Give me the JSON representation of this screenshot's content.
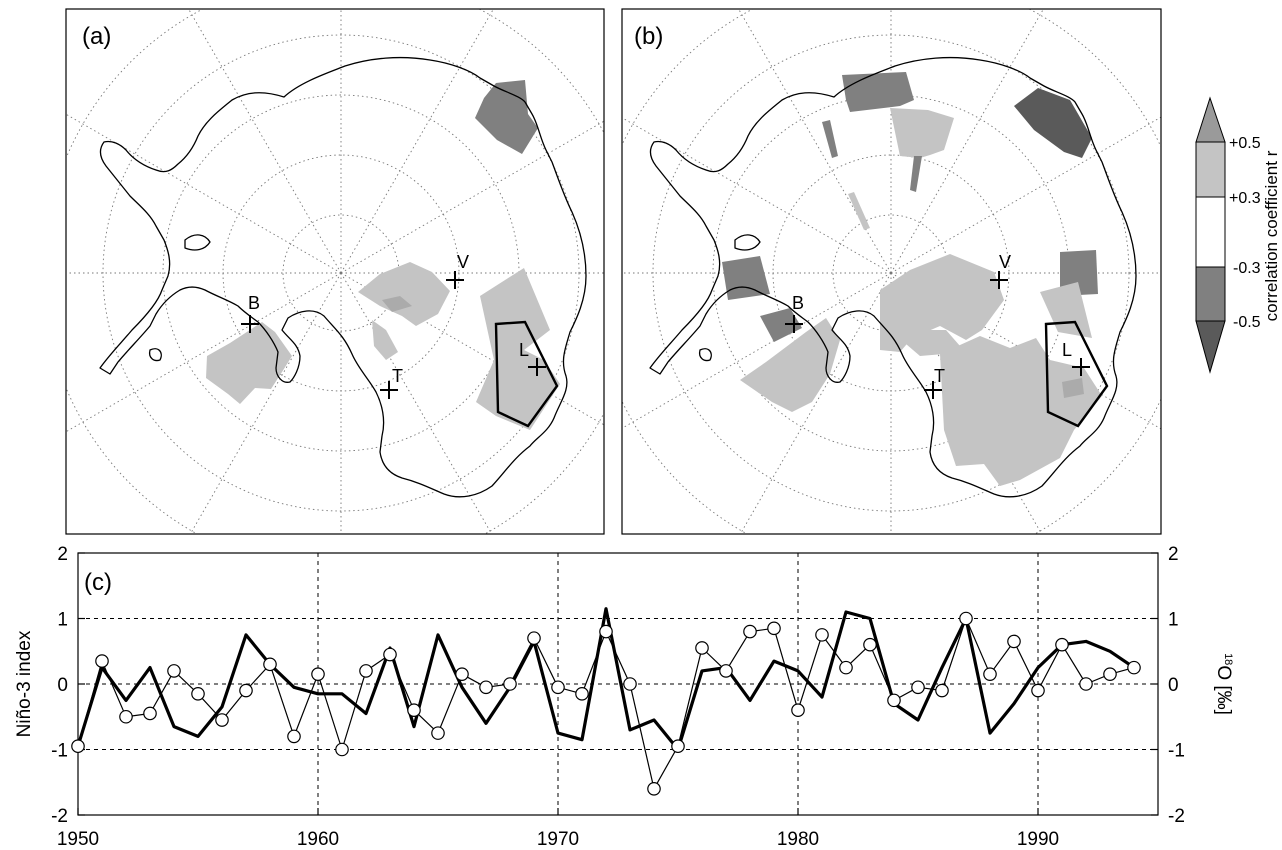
{
  "panels": {
    "a": {
      "label": "(a)",
      "stations": [
        {
          "name": "B"
        },
        {
          "name": "V"
        },
        {
          "name": "T"
        },
        {
          "name": "L"
        }
      ]
    },
    "b": {
      "label": "(b)",
      "stations": [
        {
          "name": "B"
        },
        {
          "name": "V"
        },
        {
          "name": "T"
        },
        {
          "name": "L"
        }
      ]
    }
  },
  "colorbar": {
    "title": "correlation coefficient r",
    "ticks": [
      "+0.5",
      "+0.3",
      "-0.3",
      "-0.5"
    ],
    "colors": {
      "pos_strong": "#9a9a9a",
      "pos": "#c4c4c4",
      "neutral": "#ffffff",
      "neg": "#808080",
      "neg_strong": "#5a5a5a"
    }
  },
  "chart_data": {
    "type": "line",
    "panel_label": "(c)",
    "xlabel": "",
    "ylabel_left": "Niño-3 index",
    "ylabel_right": "18O [‰]",
    "ylabel_right_sup": "18",
    "ylabel_right_main": "O [‰]",
    "xlim": [
      1950,
      1995
    ],
    "ylim": [
      -2,
      2
    ],
    "xticks": [
      1950,
      1960,
      1970,
      1980,
      1990
    ],
    "yticks": [
      -2,
      -1,
      0,
      1,
      2
    ],
    "grid": true,
    "series": [
      {
        "name": "",
        "style": "thick-line",
        "x": [
          1950,
          1951,
          1952,
          1953,
          1954,
          1955,
          1956,
          1957,
          1958,
          1959,
          1960,
          1961,
          1962,
          1963,
          1964,
          1965,
          1966,
          1967,
          1968,
          1969,
          1970,
          1971,
          1972,
          1973,
          1974,
          1975,
          1976,
          1977,
          1978,
          1979,
          1980,
          1981,
          1982,
          1983,
          1984,
          1985,
          1986,
          1987,
          1988,
          1989,
          1990,
          1991,
          1992,
          1993,
          1994
        ],
        "y": [
          -0.95,
          0.25,
          -0.25,
          0.25,
          -0.65,
          -0.8,
          -0.35,
          0.75,
          0.3,
          -0.05,
          -0.15,
          -0.15,
          -0.45,
          0.55,
          -0.65,
          0.75,
          -0.05,
          -0.6,
          -0.05,
          0.65,
          -0.75,
          -0.85,
          1.15,
          -0.7,
          -0.55,
          -1.0,
          0.2,
          0.25,
          -0.25,
          0.35,
          0.2,
          -0.2,
          1.1,
          1.0,
          -0.3,
          -0.55,
          0.25,
          1.0,
          -0.75,
          -0.3,
          0.25,
          0.6,
          0.65,
          0.5,
          0.25
        ]
      },
      {
        "name": "",
        "style": "thin-line-circles",
        "x": [
          1950,
          1951,
          1952,
          1953,
          1954,
          1955,
          1956,
          1957,
          1958,
          1959,
          1960,
          1961,
          1962,
          1963,
          1964,
          1965,
          1966,
          1967,
          1968,
          1969,
          1970,
          1971,
          1972,
          1973,
          1974,
          1975,
          1976,
          1977,
          1978,
          1979,
          1980,
          1981,
          1982,
          1983,
          1984,
          1985,
          1986,
          1987,
          1988,
          1989,
          1990,
          1991,
          1992,
          1993,
          1994
        ],
        "y": [
          -0.95,
          0.35,
          -0.5,
          -0.45,
          0.2,
          -0.15,
          -0.55,
          -0.1,
          0.3,
          -0.8,
          0.15,
          -1.0,
          0.2,
          0.45,
          -0.4,
          -0.75,
          0.15,
          -0.05,
          0.0,
          0.7,
          -0.05,
          -0.15,
          0.8,
          0.0,
          -1.6,
          -0.95,
          0.55,
          0.2,
          0.8,
          0.85,
          -0.4,
          0.75,
          0.25,
          0.6,
          -0.25,
          -0.05,
          -0.1,
          1.0,
          0.15,
          0.65,
          -0.1,
          0.6,
          0.0,
          0.15,
          0.25
        ]
      }
    ]
  }
}
